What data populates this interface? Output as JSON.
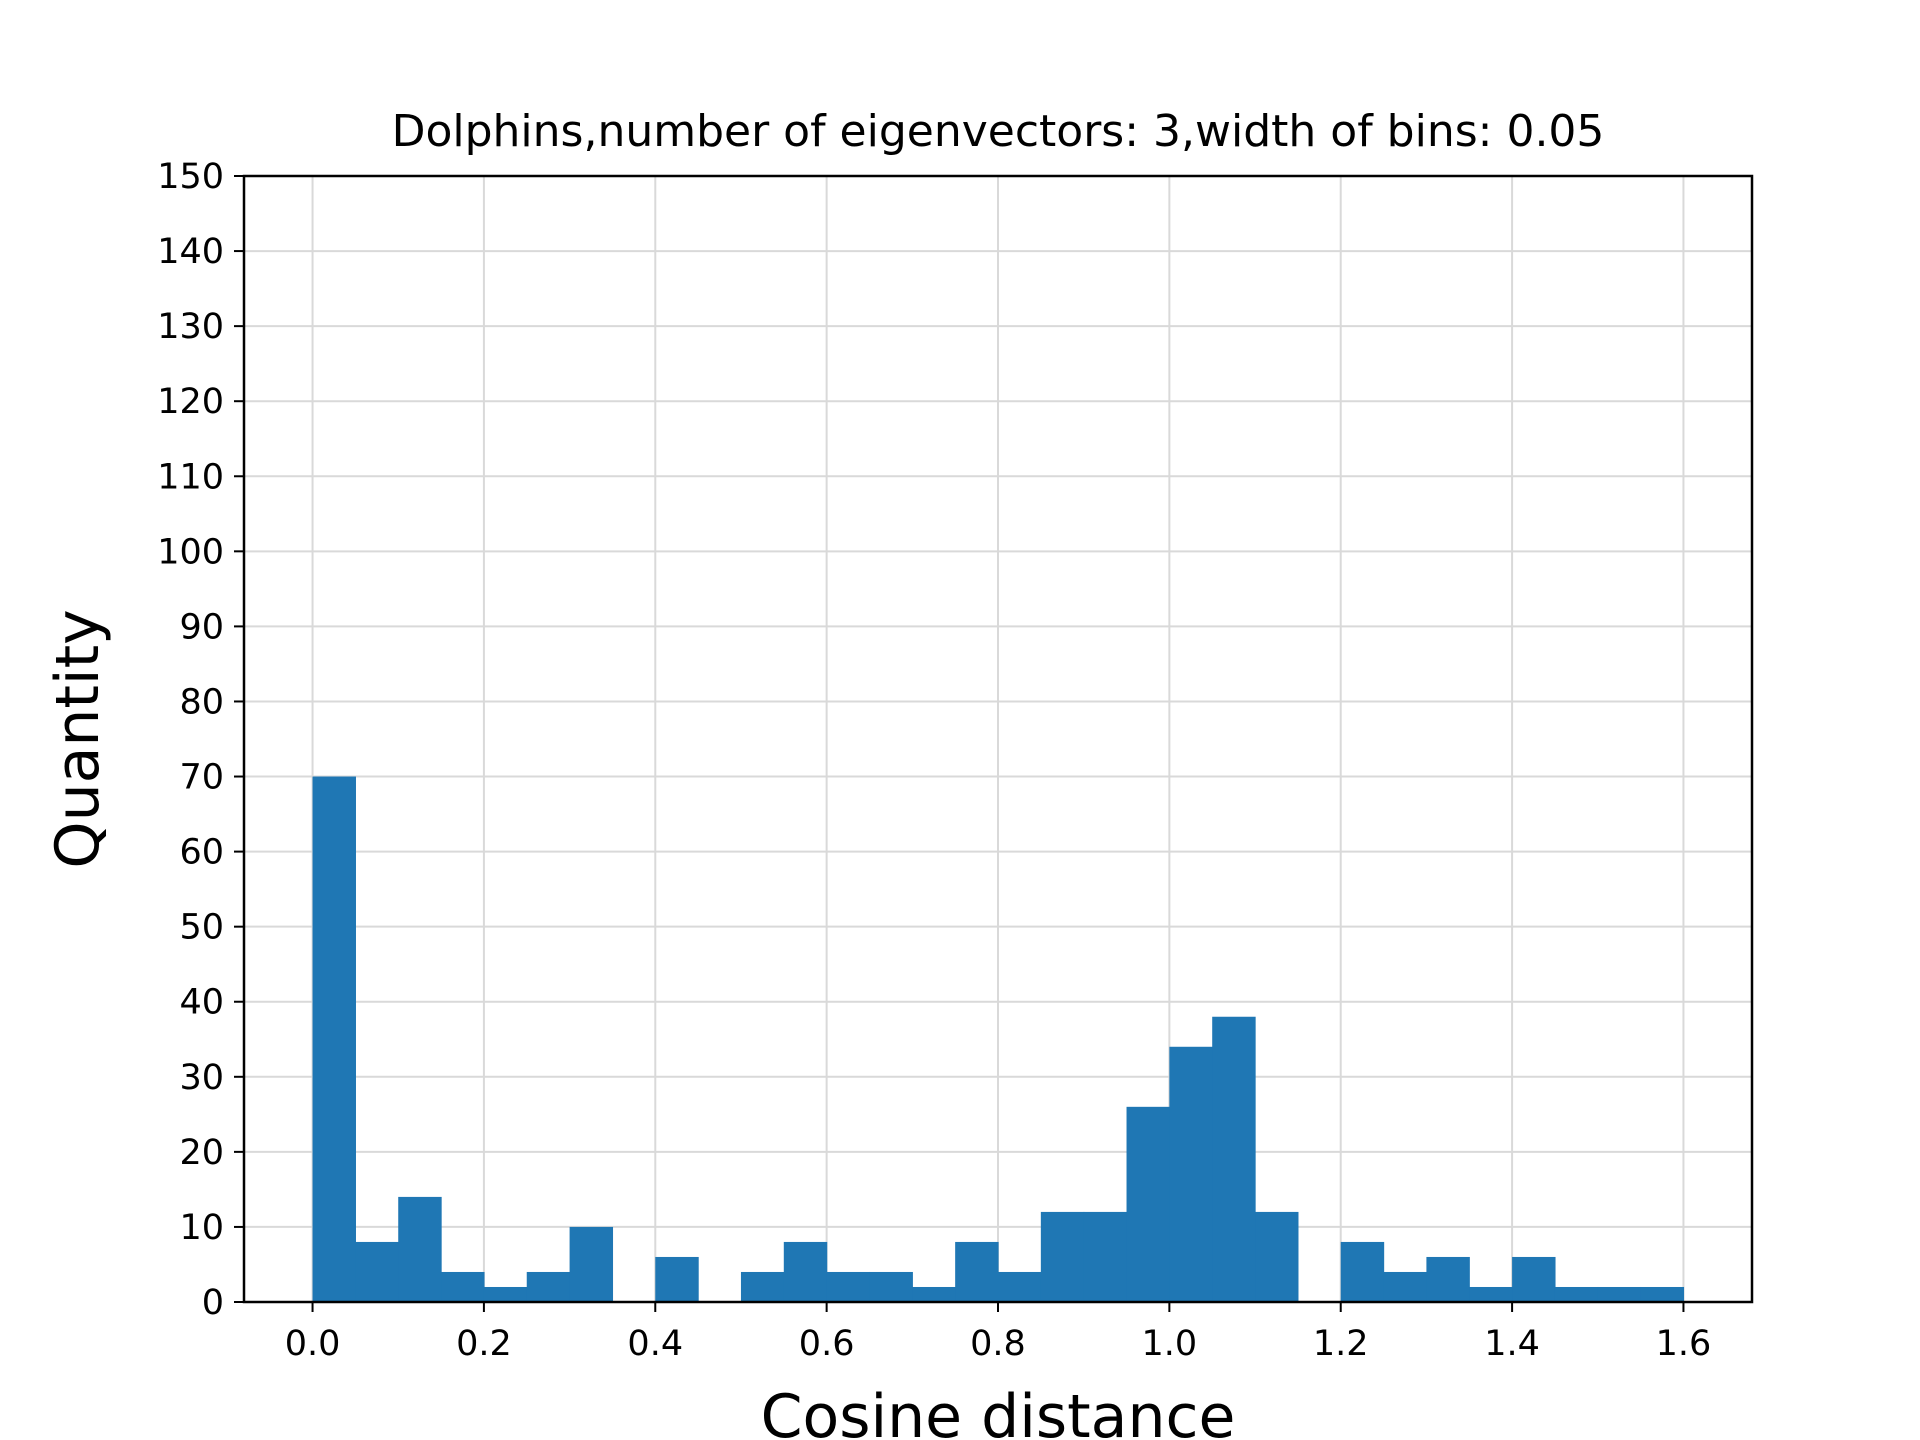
{
  "chart_data": {
    "type": "bar",
    "subtype": "histogram",
    "title": "Dolphins,number of eigenvectors: 3,width of bins: 0.05",
    "xlabel": "Cosine distance",
    "ylabel": "Quantity",
    "xlim": [
      -0.08,
      1.68
    ],
    "ylim": [
      0,
      150
    ],
    "bin_width": 0.05,
    "bin_start": 0.0,
    "values": [
      70,
      8,
      14,
      4,
      2,
      4,
      10,
      0,
      6,
      0,
      4,
      8,
      4,
      4,
      2,
      8,
      4,
      12,
      12,
      26,
      34,
      38,
      12,
      0,
      8,
      4,
      6,
      2,
      6,
      2,
      2,
      2
    ],
    "xticks": [
      0.0,
      0.2,
      0.4,
      0.6,
      0.8,
      1.0,
      1.2,
      1.4,
      1.6
    ],
    "xtick_labels": [
      "0.0",
      "0.2",
      "0.4",
      "0.6",
      "0.8",
      "1.0",
      "1.2",
      "1.4",
      "1.6"
    ],
    "yticks": [
      0,
      10,
      20,
      30,
      40,
      50,
      60,
      70,
      80,
      90,
      100,
      110,
      120,
      130,
      140,
      150
    ],
    "ytick_labels": [
      "0",
      "10",
      "20",
      "30",
      "40",
      "50",
      "60",
      "70",
      "80",
      "90",
      "100",
      "110",
      "120",
      "130",
      "140",
      "150"
    ],
    "grid": true,
    "bar_color": "#1f77b4",
    "grid_color": "#d9d9d9"
  }
}
